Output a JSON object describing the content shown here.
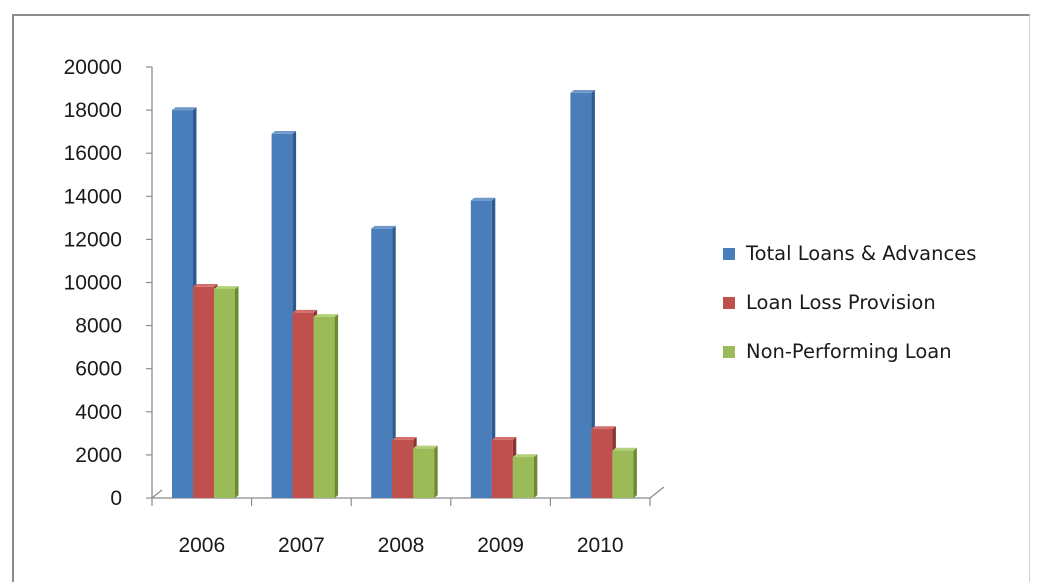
{
  "chart_data": {
    "type": "bar",
    "categories": [
      "2006",
      "2007",
      "2008",
      "2009",
      "2010"
    ],
    "series": [
      {
        "name": "Total Loans & Advances",
        "values": [
          18000,
          16900,
          12500,
          13800,
          18800
        ],
        "color": "#4a7ebb",
        "side_color": "#2f5a8e",
        "top_color": "#6f98cc"
      },
      {
        "name": "Loan Loss Provision",
        "values": [
          9800,
          8600,
          2700,
          2700,
          3200
        ],
        "color": "#c0504d",
        "side_color": "#8c3432",
        "top_color": "#d46e6b"
      },
      {
        "name": "Non-Performing Loan",
        "values": [
          9700,
          8400,
          2300,
          1900,
          2200
        ],
        "color": "#9bbb59",
        "side_color": "#6c8a33",
        "top_color": "#b4d07a"
      }
    ],
    "ylim": [
      0,
      20000
    ],
    "yticks": [
      0,
      2000,
      4000,
      6000,
      8000,
      10000,
      12000,
      14000,
      16000,
      18000,
      20000
    ],
    "legend_position": "right",
    "grid": false
  }
}
